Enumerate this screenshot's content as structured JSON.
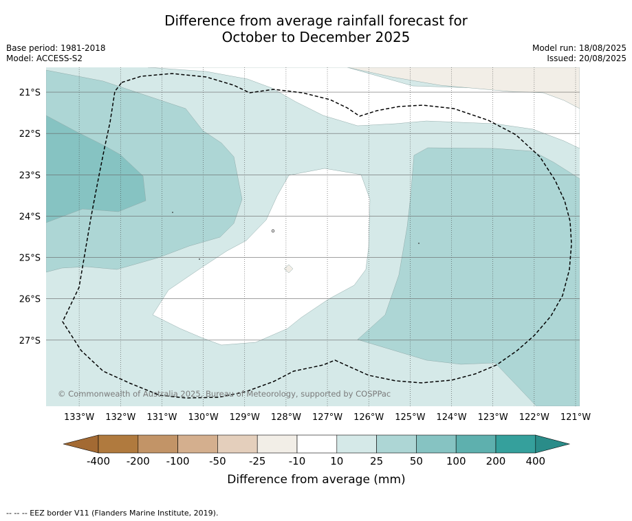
{
  "title_line1": "Difference from average rainfall forecast for",
  "title_line2": "October to December 2025",
  "base_period": "Base period: 1981-2018",
  "model": "Model: ACCESS-S2",
  "model_run": "Model run: 18/08/2025",
  "issued": "Issued: 20/08/2025",
  "copyright": "© Commonwealth of Australia 2025, Bureau of Meteorology, supported by COSPPac",
  "footnote": "--  --  -- EEZ border V11 (Flanders Marine Institute, 2019).",
  "map": {
    "lon_labels": [
      "133°W",
      "132°W",
      "131°W",
      "130°W",
      "129°W",
      "128°W",
      "127°W",
      "126°W",
      "125°W",
      "124°W",
      "123°W",
      "122°W",
      "121°W"
    ],
    "lat_labels": [
      "21°S",
      "22°S",
      "23°S",
      "24°S",
      "25°S",
      "26°S",
      "27°S"
    ],
    "lon_range": [
      -133.8,
      -120.9
    ],
    "lat_range": [
      -28.6,
      -20.4
    ]
  },
  "colorbar": {
    "label": "Difference from average (mm)",
    "ticks": [
      "-400",
      "-200",
      "-100",
      "-50",
      "-25",
      "-10",
      "10",
      "25",
      "50",
      "100",
      "200",
      "400"
    ],
    "colors": [
      "#b07a3e",
      "#c29467",
      "#d4af8e",
      "#e4cfbc",
      "#f2eee7",
      "#ffffff",
      "#d5e9e8",
      "#add6d5",
      "#86c3c2",
      "#5eb0ae",
      "#35a09c"
    ],
    "under_color": "#a36a33",
    "over_color": "#2a8c89"
  }
}
